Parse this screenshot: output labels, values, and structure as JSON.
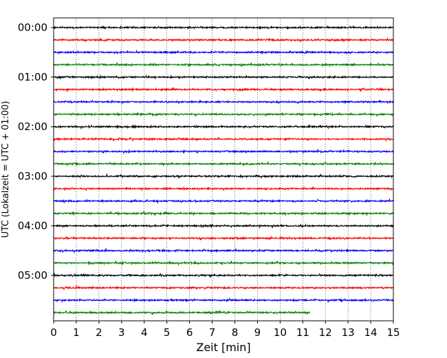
{
  "chart_data": {
    "type": "line",
    "subtype": "helicorder-seismogram",
    "title": "",
    "xlabel": "Zeit  [min]",
    "ylabel": "UTC (Lokalzeit = UTC + 01:00)",
    "xlim": [
      0,
      15
    ],
    "x_ticks": [
      "0",
      "1",
      "2",
      "3",
      "4",
      "5",
      "6",
      "7",
      "8",
      "9",
      "10",
      "11",
      "12",
      "13",
      "14",
      "15"
    ],
    "y_ticks": [
      "00:00",
      "01:00",
      "02:00",
      "03:00",
      "04:00",
      "05:00"
    ],
    "x_grid": "dotted vertical lines at each minute",
    "y_grid": false,
    "trace_minutes_per_line": 15,
    "trace_colors": [
      "#000000",
      "#ff0000",
      "#0000ff",
      "#008000"
    ],
    "traces": [
      {
        "start": "00:00",
        "color": "#000000",
        "end_minute": 15
      },
      {
        "start": "00:15",
        "color": "#ff0000",
        "end_minute": 15
      },
      {
        "start": "00:30",
        "color": "#0000ff",
        "end_minute": 15
      },
      {
        "start": "00:45",
        "color": "#008000",
        "end_minute": 15
      },
      {
        "start": "01:00",
        "color": "#000000",
        "end_minute": 15
      },
      {
        "start": "01:15",
        "color": "#ff0000",
        "end_minute": 15
      },
      {
        "start": "01:30",
        "color": "#0000ff",
        "end_minute": 15
      },
      {
        "start": "01:45",
        "color": "#008000",
        "end_minute": 15
      },
      {
        "start": "02:00",
        "color": "#000000",
        "end_minute": 15
      },
      {
        "start": "02:15",
        "color": "#ff0000",
        "end_minute": 15
      },
      {
        "start": "02:30",
        "color": "#0000ff",
        "end_minute": 15
      },
      {
        "start": "02:45",
        "color": "#008000",
        "end_minute": 15
      },
      {
        "start": "03:00",
        "color": "#000000",
        "end_minute": 15
      },
      {
        "start": "03:15",
        "color": "#ff0000",
        "end_minute": 15
      },
      {
        "start": "03:30",
        "color": "#0000ff",
        "end_minute": 15
      },
      {
        "start": "03:45",
        "color": "#008000",
        "end_minute": 15
      },
      {
        "start": "04:00",
        "color": "#000000",
        "end_minute": 15
      },
      {
        "start": "04:15",
        "color": "#ff0000",
        "end_minute": 15
      },
      {
        "start": "04:30",
        "color": "#0000ff",
        "end_minute": 15
      },
      {
        "start": "04:45",
        "color": "#008000",
        "end_minute": 15
      },
      {
        "start": "05:00",
        "color": "#000000",
        "end_minute": 15
      },
      {
        "start": "05:15",
        "color": "#ff0000",
        "end_minute": 15
      },
      {
        "start": "05:30",
        "color": "#0000ff",
        "end_minute": 15
      },
      {
        "start": "05:45",
        "color": "#008000",
        "end_minute": 11.3
      }
    ]
  }
}
